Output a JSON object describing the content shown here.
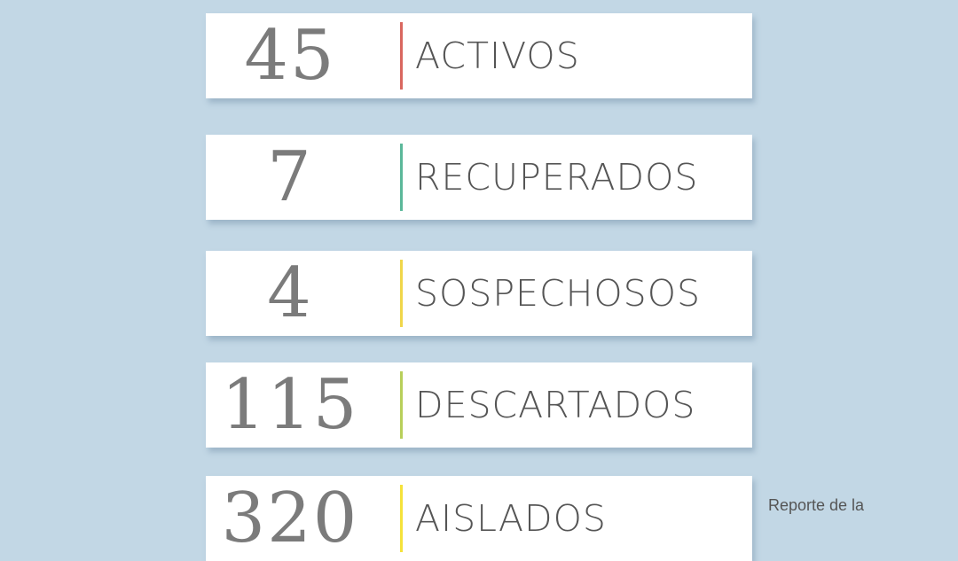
{
  "items": [
    {
      "value": "45",
      "label": "ACTIVOS",
      "color": "#d9675f"
    },
    {
      "value": "7",
      "label": "RECUPERADOS",
      "color": "#5bb89a"
    },
    {
      "value": "4",
      "label": "SOSPECHOSOS",
      "color": "#f0d64a"
    },
    {
      "value": "115",
      "label": "DESCARTADOS",
      "color": "#b8cf5a"
    },
    {
      "value": "320",
      "label": "AISLADOS",
      "color": "#f5e23a"
    }
  ],
  "note": "Reporte de la"
}
